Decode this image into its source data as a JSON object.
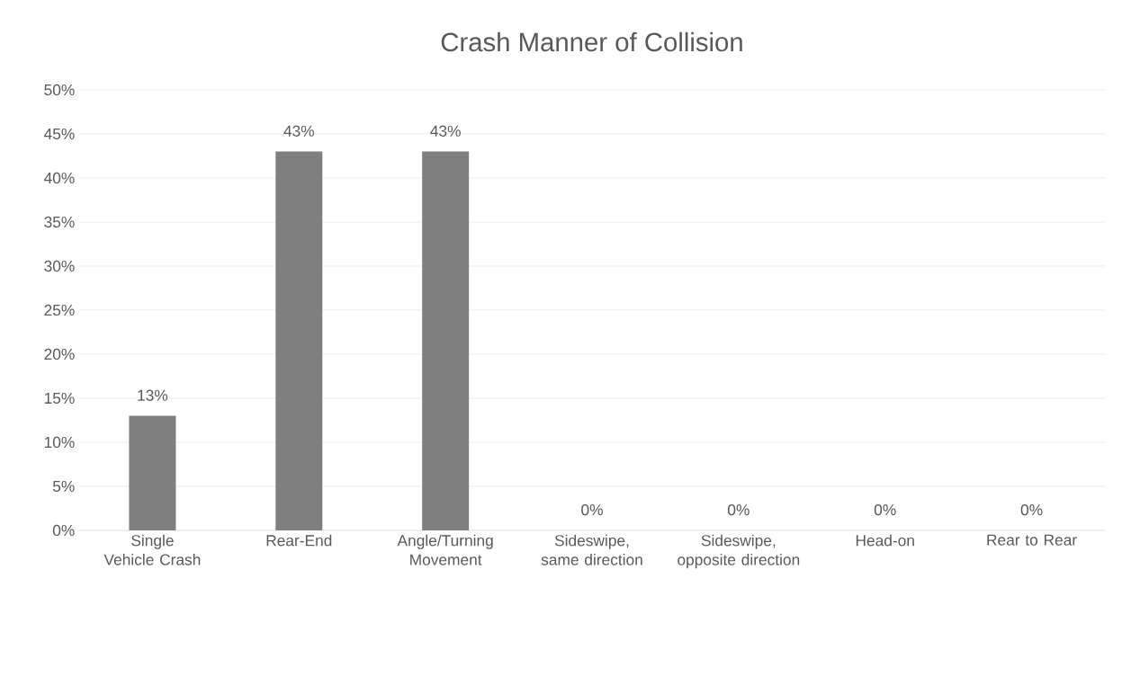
{
  "chart_data": {
    "type": "bar",
    "title": "Crash Manner of Collision",
    "categories": [
      "Single Vehicle Crash",
      "Rear-End",
      "Angle/Turning Movement",
      "Sideswipe, same direction",
      "Sideswipe, opposite direction",
      "Head-on",
      "Rear to Rear"
    ],
    "values": [
      13,
      43,
      43,
      0,
      0,
      0,
      0
    ],
    "value_labels": [
      "13%",
      "43%",
      "43%",
      "0%",
      "0%",
      "0%",
      "0%"
    ],
    "color": "#7f7f7f",
    "ylim": [
      0,
      50
    ],
    "yticks": [
      {
        "value": 0,
        "label": "0%"
      },
      {
        "value": 5,
        "label": "5%"
      },
      {
        "value": 10,
        "label": "10%"
      },
      {
        "value": 15,
        "label": "15%"
      },
      {
        "value": 20,
        "label": "20%"
      },
      {
        "value": 25,
        "label": "25%"
      },
      {
        "value": 30,
        "label": "30%"
      },
      {
        "value": 35,
        "label": "35%"
      },
      {
        "value": 40,
        "label": "40%"
      },
      {
        "value": 45,
        "label": "45%"
      },
      {
        "value": 50,
        "label": "50%"
      }
    ],
    "grid": "y"
  }
}
